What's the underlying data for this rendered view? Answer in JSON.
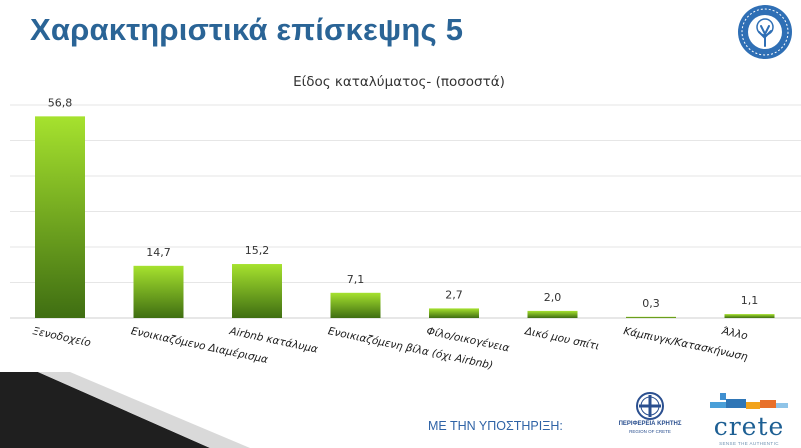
{
  "slide": {
    "title": "Χαρακτηριστικά επίσκεψης 5"
  },
  "footer": {
    "support_label": "ΜΕ ΤΗΝ ΥΠΟΣΤΗΡΙΞΗ:",
    "region_logo_line1": "ΠΕΡΙΦΕΡΕΙΑ ΚΡΗΤΗΣ",
    "region_logo_line2": "REGION OF CRETE",
    "crete_logo_word": "crete",
    "crete_logo_tagline": "SENSE THE AUTHENTIC"
  },
  "colors": {
    "title": "#2a6496",
    "bar_top": "#a6e22e",
    "bar_bottom": "#3f6e12",
    "gridline": "#e6e6e6",
    "footer_text": "#2f63a6",
    "accent_dark": "#1f1f1f"
  },
  "chart_data": {
    "type": "bar",
    "title": "Είδος καταλύματος- (ποσοστά)",
    "categories": [
      "Ξενοδοχείο",
      "Ενοικιαζόμενο Διαμέρισμα",
      "Airbnb κατάλυμα",
      "Ενοικιαζόμενη βίλα (όχι Airbnb)",
      "Φίλο/οικογένεια",
      "Δικό μου σπίτι",
      "Κάμπινγκ/Κατασκήνωση",
      "Άλλο"
    ],
    "values": [
      56.8,
      14.7,
      15.2,
      7.1,
      2.7,
      2.0,
      0.3,
      1.1
    ],
    "value_labels": [
      "56,8",
      "14,7",
      "15,2",
      "7,1",
      "2,7",
      "2,0",
      "0,3",
      "1,1"
    ],
    "ylim": [
      0,
      60
    ],
    "grid": true,
    "legend": "none"
  }
}
